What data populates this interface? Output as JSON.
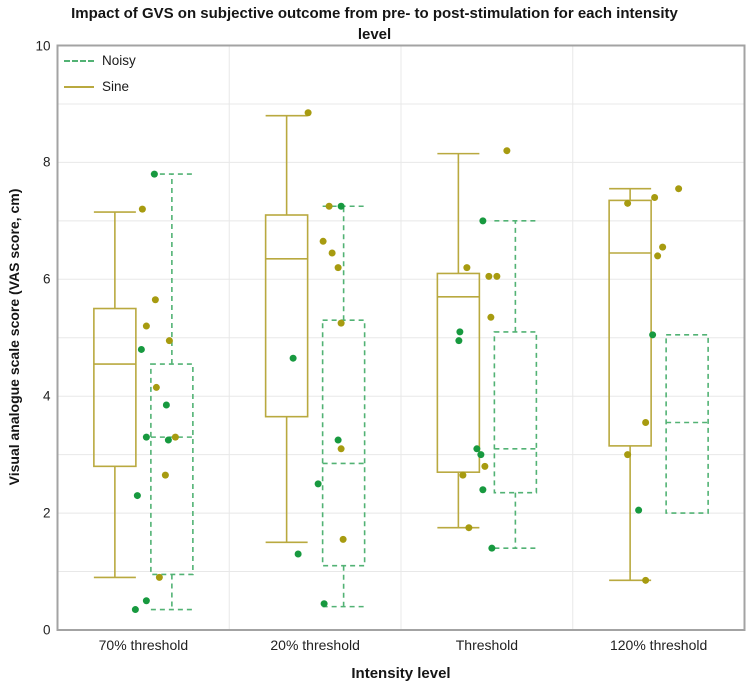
{
  "chart": {
    "title": "Impact of GVS on subjective outcome from pre- to post-stimulation for each intensity level",
    "x_axis_title": "Intensity level",
    "y_axis_title": "Visual analogue scale score (VAS score, cm)"
  },
  "legend": {
    "items": [
      {
        "label": "Noisy",
        "color": "#52b274",
        "style": "dashed"
      },
      {
        "label": "Sine",
        "color": "#b9a93f",
        "style": "solid"
      }
    ]
  },
  "chart_data": {
    "type": "boxplot",
    "title": "Impact of GVS on subjective outcome from pre- to post-stimulation for each intensity level",
    "xlabel": "Intensity level",
    "ylabel": "Visual analogue scale score (VAS score, cm)",
    "ylim": [
      0,
      10
    ],
    "yticks": [
      0,
      2,
      4,
      6,
      8,
      10
    ],
    "grid": "horizontal lines at every integer, vertical dividers between categories",
    "legend_position": "top-left inside plot",
    "categories": [
      "70% threshold",
      "20% threshold",
      "Threshold",
      "120% threshold"
    ],
    "series": [
      {
        "name": "Noisy",
        "side": "right",
        "line_color": "#52b274",
        "dot_color": "#17993f",
        "line_style": "dashed",
        "boxes": [
          {
            "whislo": 0.35,
            "q1": 0.95,
            "med": 3.3,
            "q3": 4.55,
            "whishi": 7.8
          },
          {
            "whislo": 0.4,
            "q1": 1.1,
            "med": 2.85,
            "q3": 5.3,
            "whishi": 7.25
          },
          {
            "whislo": 1.4,
            "q1": 2.35,
            "med": 3.1,
            "q3": 5.1,
            "whishi": 7.0
          },
          {
            "whislo": 2.0,
            "q1": 2.0,
            "med": 3.55,
            "q3": 5.05,
            "whishi": 5.05
          }
        ],
        "points": [
          [
            [
              7.8,
              11
            ],
            [
              4.8,
              -2
            ],
            [
              3.85,
              23
            ],
            [
              3.3,
              3
            ],
            [
              3.25,
              25
            ],
            [
              2.3,
              -6
            ],
            [
              0.5,
              3
            ],
            [
              0.35,
              -8
            ]
          ],
          [
            [
              7.25,
              26
            ],
            [
              4.65,
              -22
            ],
            [
              3.25,
              23
            ],
            [
              2.5,
              3
            ],
            [
              1.3,
              -17
            ],
            [
              0.45,
              9
            ]
          ],
          [
            [
              7.0,
              -4
            ],
            [
              5.1,
              -27
            ],
            [
              4.95,
              -28
            ],
            [
              3.1,
              -10
            ],
            [
              3.0,
              -6
            ],
            [
              2.4,
              -4
            ],
            [
              1.4,
              5
            ]
          ],
          [
            [
              5.05,
              -6
            ],
            [
              2.05,
              -20
            ]
          ]
        ]
      },
      {
        "name": "Sine",
        "side": "left",
        "line_color": "#b9a93f",
        "dot_color": "#a79b10",
        "line_style": "solid",
        "boxes": [
          {
            "whislo": 0.9,
            "q1": 2.8,
            "med": 4.55,
            "q3": 5.5,
            "whishi": 7.15
          },
          {
            "whislo": 1.5,
            "q1": 3.65,
            "med": 6.35,
            "q3": 7.1,
            "whishi": 8.8
          },
          {
            "whislo": 1.75,
            "q1": 2.7,
            "med": 5.7,
            "q3": 6.1,
            "whishi": 8.15
          },
          {
            "whislo": 0.85,
            "q1": 3.15,
            "med": 6.45,
            "q3": 7.35,
            "whishi": 7.55
          }
        ],
        "points": [
          [
            [
              7.2,
              -1
            ],
            [
              5.65,
              12
            ],
            [
              5.2,
              3
            ],
            [
              4.95,
              26
            ],
            [
              4.15,
              13
            ],
            [
              3.3,
              32
            ],
            [
              2.65,
              22
            ],
            [
              0.9,
              16
            ]
          ],
          [
            [
              8.85,
              -7
            ],
            [
              7.25,
              14
            ],
            [
              6.65,
              8
            ],
            [
              6.45,
              17
            ],
            [
              6.2,
              23
            ],
            [
              5.25,
              26
            ],
            [
              3.1,
              26
            ],
            [
              1.55,
              28
            ]
          ],
          [
            [
              8.2,
              20
            ],
            [
              6.2,
              -20
            ],
            [
              6.05,
              2
            ],
            [
              6.05,
              10
            ],
            [
              5.35,
              4
            ],
            [
              2.8,
              -2
            ],
            [
              2.65,
              -24
            ],
            [
              1.75,
              -18
            ]
          ],
          [
            [
              7.55,
              20
            ],
            [
              7.4,
              -4
            ],
            [
              7.3,
              -31
            ],
            [
              6.55,
              4
            ],
            [
              6.4,
              -1
            ],
            [
              3.55,
              -13
            ],
            [
              3.0,
              -31
            ],
            [
              0.85,
              -13
            ]
          ]
        ]
      }
    ],
    "style": {
      "plot_border_color": "#a3a3a3",
      "gridline_color": "#e8e8e8",
      "background": "#ffffff"
    }
  }
}
